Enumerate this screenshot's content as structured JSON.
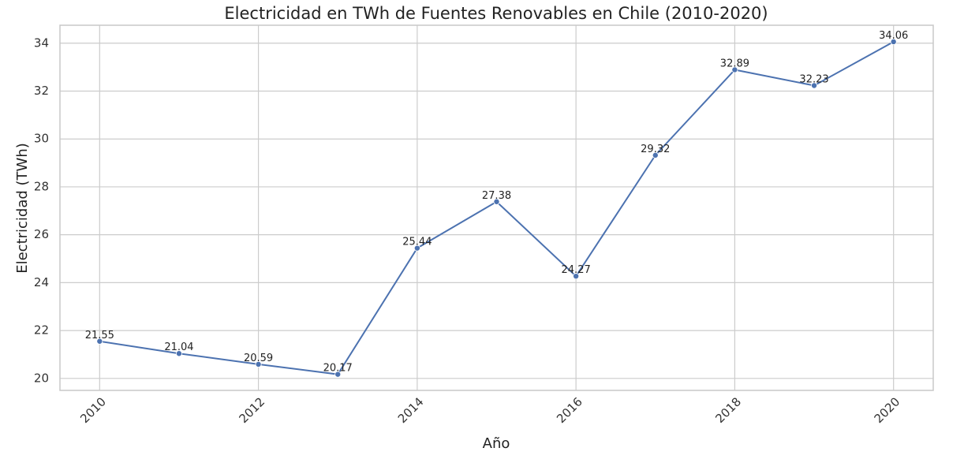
{
  "chart_data": {
    "type": "line",
    "title": "Electricidad en TWh de Fuentes Renovables en Chile (2010-2020)",
    "xlabel": "Año",
    "ylabel": "Electricidad (TWh)",
    "x": [
      2010,
      2011,
      2012,
      2013,
      2014,
      2015,
      2016,
      2017,
      2018,
      2019,
      2020
    ],
    "y": [
      21.55,
      21.04,
      20.59,
      20.17,
      25.44,
      27.38,
      24.27,
      29.32,
      32.89,
      32.23,
      34.06
    ],
    "data_labels": [
      "21.55",
      "21.04",
      "20.59",
      "20.17",
      "25.44",
      "27.38",
      "24.27",
      "29.32",
      "32.89",
      "32.23",
      "34.06"
    ],
    "xticks": [
      2010,
      2012,
      2014,
      2016,
      2018,
      2020
    ],
    "xtick_labels": [
      "2010",
      "2012",
      "2014",
      "2016",
      "2018",
      "2020"
    ],
    "yticks": [
      20,
      22,
      24,
      26,
      28,
      30,
      32,
      34
    ],
    "ytick_labels": [
      "20",
      "22",
      "24",
      "26",
      "28",
      "30",
      "32",
      "34"
    ],
    "xlim": [
      2009.5,
      2020.5
    ],
    "ylim": [
      19.5,
      34.75
    ],
    "grid": true,
    "xtick_rotation": "45 degrees",
    "line_color": "#4c72b0",
    "marker": "circle"
  }
}
